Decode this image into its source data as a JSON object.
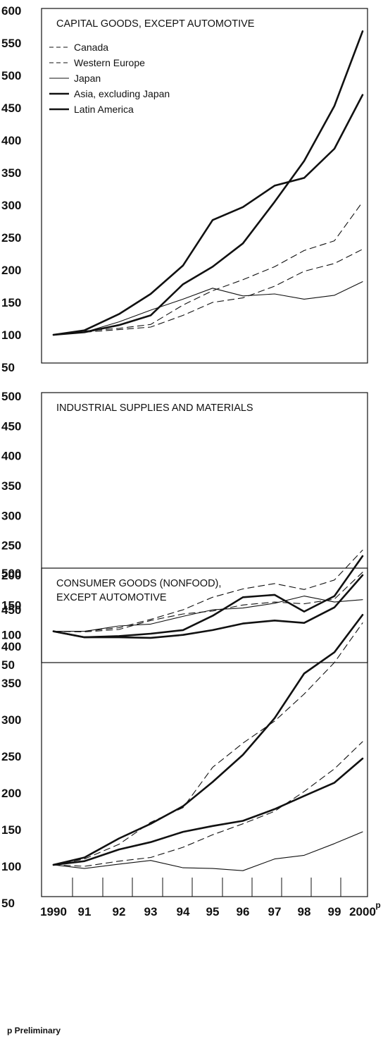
{
  "footnote": "p Preliminary",
  "x_superscript": "p",
  "chart_data": [
    {
      "type": "line",
      "title": "CAPITAL GOODS, EXCEPT AUTOMOTIVE",
      "ylim": [
        50,
        600
      ],
      "yticks": [
        50,
        100,
        150,
        200,
        250,
        300,
        350,
        400,
        450,
        500,
        550,
        600
      ],
      "x": [
        "1990",
        "91",
        "92",
        "93",
        "94",
        "95",
        "96",
        "97",
        "98",
        "99",
        "2000"
      ],
      "legend": "top-left",
      "series": [
        {
          "name": "Canada",
          "style": "dashed",
          "width": "thin",
          "values": [
            100,
            106,
            110,
            116,
            146,
            168,
            185,
            205,
            230,
            245,
            305
          ]
        },
        {
          "name": "Western Europe",
          "style": "dashed",
          "width": "thin",
          "values": [
            100,
            104,
            108,
            112,
            130,
            150,
            157,
            175,
            198,
            210,
            232
          ]
        },
        {
          "name": "Japan",
          "style": "solid",
          "width": "thin",
          "values": [
            100,
            104,
            120,
            138,
            155,
            172,
            160,
            163,
            155,
            161,
            182
          ]
        },
        {
          "name": "Asia, excluding Japan",
          "style": "solid",
          "width": "thick",
          "values": [
            100,
            104,
            115,
            130,
            178,
            205,
            241,
            305,
            368,
            453,
            568
          ]
        },
        {
          "name": "Latin America",
          "style": "solid",
          "width": "thick",
          "values": [
            100,
            107,
            132,
            163,
            207,
            277,
            297,
            330,
            342,
            387,
            470
          ]
        }
      ]
    },
    {
      "type": "line",
      "title": "INDUSTRIAL SUPPLIES AND MATERIALS",
      "ylim": [
        50,
        500
      ],
      "yticks": [
        50,
        100,
        150,
        200,
        250,
        300,
        350,
        400,
        450,
        500
      ],
      "x": [
        "1990",
        "91",
        "92",
        "93",
        "94",
        "95",
        "96",
        "97",
        "98",
        "99",
        "2000"
      ],
      "series": [
        {
          "name": "Canada",
          "style": "dashed",
          "width": "thin",
          "values": [
            106,
            106,
            112,
            126,
            142,
            163,
            177,
            186,
            176,
            192,
            242
          ]
        },
        {
          "name": "Western Europe",
          "style": "dashed",
          "width": "thin",
          "values": [
            106,
            105,
            109,
            124,
            135,
            140,
            150,
            155,
            152,
            160,
            205
          ]
        },
        {
          "name": "Japan",
          "style": "solid",
          "width": "thin",
          "values": [
            106,
            106,
            115,
            118,
            131,
            142,
            145,
            153,
            165,
            155,
            159
          ]
        },
        {
          "name": "Asia, excluding Japan",
          "style": "solid",
          "width": "thick",
          "values": [
            106,
            96,
            98,
            102,
            108,
            132,
            163,
            167,
            139,
            165,
            232
          ]
        },
        {
          "name": "Latin America",
          "style": "solid",
          "width": "thick",
          "values": [
            106,
            96,
            96,
            95,
            100,
            108,
            119,
            124,
            120,
            146,
            200
          ]
        }
      ]
    },
    {
      "type": "line",
      "title": "CONSUMER GOODS (NONFOOD),\nEXCEPT AUTOMOTIVE",
      "ylim": [
        50,
        500
      ],
      "yticks": [
        50,
        100,
        150,
        200,
        250,
        300,
        350,
        400,
        450,
        500
      ],
      "x": [
        "1990",
        "91",
        "92",
        "93",
        "94",
        "95",
        "96",
        "97",
        "98",
        "99",
        "2000"
      ],
      "series": [
        {
          "name": "Canada",
          "style": "dashed",
          "width": "thin",
          "values": [
            102,
            110,
            130,
            160,
            180,
            235,
            268,
            298,
            335,
            378,
            432
          ]
        },
        {
          "name": "Western Europe",
          "style": "dashed",
          "width": "thin",
          "values": [
            102,
            100,
            107,
            112,
            126,
            143,
            158,
            175,
            202,
            233,
            270
          ]
        },
        {
          "name": "Japan",
          "style": "solid",
          "width": "thin",
          "values": [
            102,
            97,
            103,
            108,
            98,
            97,
            94,
            110,
            115,
            131,
            147
          ]
        },
        {
          "name": "Asia, excluding Japan",
          "style": "solid",
          "width": "thick",
          "values": [
            102,
            112,
            138,
            158,
            182,
            215,
            252,
            302,
            363,
            392,
            443
          ]
        },
        {
          "name": "Latin America",
          "style": "solid",
          "width": "thick",
          "values": [
            102,
            107,
            123,
            133,
            147,
            155,
            162,
            178,
            196,
            214,
            247
          ]
        }
      ]
    }
  ]
}
